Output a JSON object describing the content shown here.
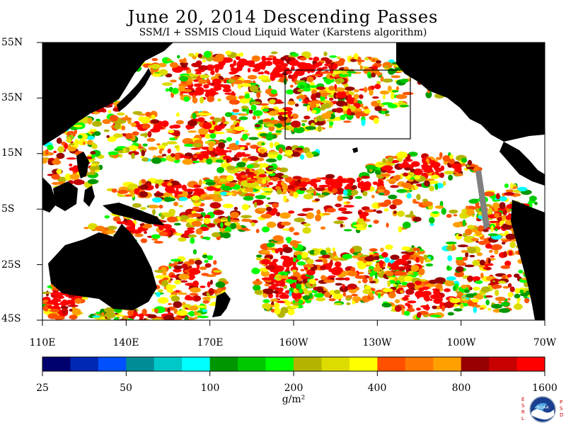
{
  "title": "June 20, 2014  Descending Passes",
  "subtitle": "SSM/I + SSMIS Cloud Liquid Water (Karstens algorithm)",
  "lat_labels": [
    "55N",
    "35N",
    "15N",
    "5S",
    "25S",
    "45S"
  ],
  "lon_labels": [
    "110E",
    "140E",
    "170E",
    "160W",
    "130W",
    "100W",
    "70W"
  ],
  "colorbar": {
    "tick_labels": [
      "25",
      "50",
      "100",
      "200",
      "400",
      "800",
      "1600"
    ],
    "unit": "g/m²",
    "colors": [
      "#00006e",
      "#0028b4",
      "#0050ff",
      "#008c96",
      "#00c8c8",
      "#00ffff",
      "#009600",
      "#00c800",
      "#00ff00",
      "#b4b400",
      "#dcdc00",
      "#ffff00",
      "#ff5000",
      "#ff7800",
      "#ffa000",
      "#960000",
      "#c80000",
      "#ff0000"
    ]
  },
  "colors": {
    "land": "#000000",
    "ocean_clear": "#ffffff",
    "ice_track": "#808080"
  },
  "logo": {
    "left_letters": [
      "E",
      "S",
      "R",
      "L"
    ],
    "right_letters": [
      "P",
      "S",
      "D"
    ],
    "center": "NOAA"
  },
  "map_extent": {
    "lon": [
      "110E",
      "70W"
    ],
    "lat": [
      "45S",
      "55N"
    ]
  }
}
